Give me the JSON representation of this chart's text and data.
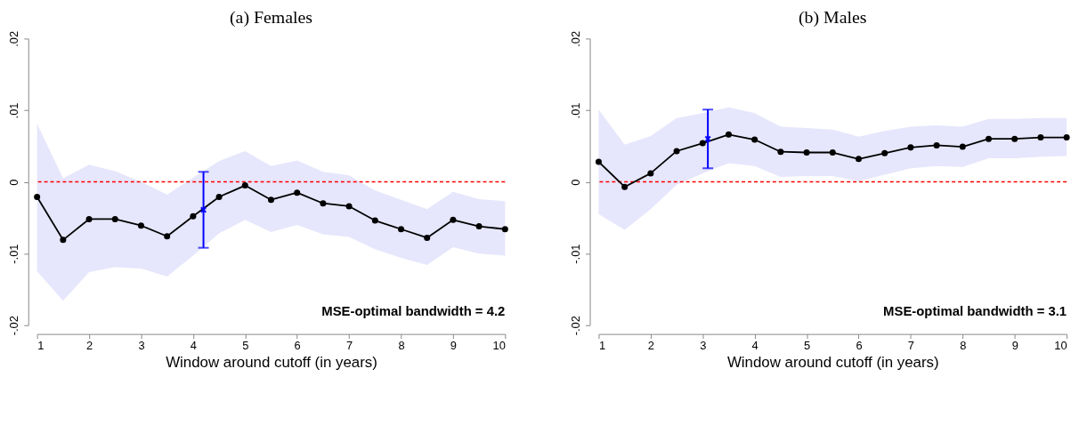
{
  "chart_data": [
    {
      "type": "line",
      "title": "(a) Females",
      "xlabel": "Window around cutoff (in years)",
      "xlim": [
        1,
        10
      ],
      "xticks": [
        1,
        2,
        3,
        4,
        5,
        6,
        7,
        8,
        9,
        10
      ],
      "ylim": [
        -0.02,
        0.02
      ],
      "yticks": [
        {
          "value": -0.02,
          "label": "-.02"
        },
        {
          "value": -0.01,
          "label": "-.01"
        },
        0,
        {
          "value": 0.01,
          "label": ".01"
        },
        {
          "value": 0.02,
          "label": ".02"
        }
      ],
      "grid": false,
      "marker": "circle",
      "line_style": "solid",
      "x": [
        1,
        1.5,
        2,
        2.5,
        3,
        3.5,
        4,
        4.5,
        5,
        5.5,
        6,
        6.5,
        7,
        7.5,
        8,
        8.5,
        9,
        9.5,
        10
      ],
      "series": [
        {
          "color": "#000000",
          "values": [
            -0.0021,
            -0.0081,
            -0.0052,
            -0.0052,
            -0.0061,
            -0.0076,
            -0.0048,
            -0.0021,
            -0.0005,
            -0.0025,
            -0.0015,
            -0.003,
            -0.0034,
            -0.0054,
            -0.0066,
            -0.0078,
            -0.0053,
            -0.0062,
            -0.0066
          ],
          "upper": [
            0.0081,
            0.0005,
            0.0024,
            0.0015,
            0.0,
            -0.0018,
            0.0006,
            0.0029,
            0.0043,
            0.0022,
            0.003,
            0.0014,
            0.0009,
            -0.0012,
            -0.0025,
            -0.0038,
            -0.0014,
            -0.0024,
            -0.0027
          ],
          "lower": [
            -0.0125,
            -0.0166,
            -0.0126,
            -0.0119,
            -0.0121,
            -0.0132,
            -0.0103,
            -0.0072,
            -0.0053,
            -0.007,
            -0.006,
            -0.0073,
            -0.0077,
            -0.0094,
            -0.0106,
            -0.0116,
            -0.0091,
            -0.01,
            -0.0103
          ]
        },
        {
          "type": "scatter",
          "color": "#0000ff",
          "marker": "cross",
          "x": [
            4.2
          ],
          "values": [
            -0.0039
          ],
          "errors": [
            [
              -0.0092,
              0.0014
            ]
          ]
        }
      ],
      "ref_lines": [
        {
          "axis": "y",
          "value": 0,
          "color": "#ff0000",
          "line_style": "dashed"
        }
      ],
      "annotations": [
        "MSE-optimal bandwidth = 4.2"
      ]
    },
    {
      "type": "line",
      "title": "(b) Males",
      "xlabel": "Window around cutoff (in years)",
      "xlim": [
        1,
        10
      ],
      "xticks": [
        1,
        2,
        3,
        4,
        5,
        6,
        7,
        8,
        9,
        10
      ],
      "ylim": [
        -0.02,
        0.02
      ],
      "yticks": [
        {
          "value": -0.02,
          "label": "-.02"
        },
        {
          "value": -0.01,
          "label": "-.01"
        },
        0,
        {
          "value": 0.01,
          "label": ".01"
        },
        {
          "value": 0.02,
          "label": ".02"
        }
      ],
      "grid": false,
      "marker": "circle",
      "line_style": "solid",
      "x": [
        1,
        1.5,
        2,
        2.5,
        3,
        3.5,
        4,
        4.5,
        5,
        5.5,
        6,
        6.5,
        7,
        7.5,
        8,
        8.5,
        9,
        9.5,
        10
      ],
      "series": [
        {
          "color": "#000000",
          "values": [
            0.0028,
            -0.0007,
            0.0012,
            0.0043,
            0.0054,
            0.0066,
            0.0059,
            0.0042,
            0.0041,
            0.0041,
            0.0032,
            0.004,
            0.0048,
            0.0051,
            0.0049,
            0.006,
            0.006,
            0.0062,
            0.0062
          ],
          "upper": [
            0.0101,
            0.0052,
            0.0064,
            0.0089,
            0.0096,
            0.0104,
            0.0096,
            0.0077,
            0.0075,
            0.0073,
            0.0063,
            0.0071,
            0.0077,
            0.0079,
            0.0077,
            0.0088,
            0.0088,
            0.0089,
            0.0089
          ],
          "lower": [
            -0.0045,
            -0.0067,
            -0.0038,
            -0.0004,
            0.0012,
            0.0026,
            0.0022,
            0.0007,
            0.0008,
            0.0008,
            0.0001,
            0.001,
            0.0019,
            0.0022,
            0.0021,
            0.0033,
            0.0033,
            0.0035,
            0.0036
          ]
        },
        {
          "type": "scatter",
          "color": "#0000ff",
          "marker": "cross",
          "x": [
            3.1
          ],
          "values": [
            0.006
          ],
          "errors": [
            [
              0.0019,
              0.0101
            ]
          ]
        }
      ],
      "ref_lines": [
        {
          "axis": "y",
          "value": 0,
          "color": "#ff0000",
          "line_style": "dashed"
        }
      ],
      "annotations": [
        "MSE-optimal bandwidth = 3.1"
      ]
    }
  ]
}
